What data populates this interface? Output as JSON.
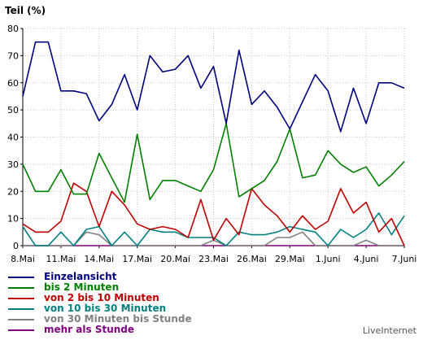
{
  "chart_data": {
    "type": "line",
    "ylabel": "Teil (%)",
    "ylim": [
      0,
      80
    ],
    "yticks": [
      "0",
      "10",
      "20",
      "30",
      "40",
      "50",
      "60",
      "70",
      "80"
    ],
    "grid": true,
    "x_tick_labels": [
      "8.Mai",
      "11.Mai",
      "14.Mai",
      "17.Mai",
      "20.Mai",
      "23.Mai",
      "26.Mai",
      "29.Mai",
      "1.Juni",
      "4.Juni",
      "7.Juni"
    ],
    "x_tick_positions": [
      0,
      3,
      6,
      9,
      12,
      15,
      18,
      21,
      24,
      27,
      30
    ],
    "x_count": 31,
    "series": [
      {
        "name": "Einzelansicht",
        "color": "#000080",
        "values": [
          55,
          75,
          75,
          57,
          57,
          56,
          46,
          52,
          63,
          50,
          70,
          64,
          65,
          70,
          58,
          66,
          45,
          72,
          52,
          57,
          51,
          43,
          53,
          63,
          57,
          42,
          58,
          45,
          60,
          60,
          58
        ]
      },
      {
        "name": "bis 2 Minuten",
        "color": "#008000",
        "values": [
          30,
          20,
          20,
          28,
          19,
          19,
          34,
          25,
          16,
          41,
          17,
          24,
          24,
          22,
          20,
          28,
          45,
          18,
          21,
          24,
          31,
          43,
          25,
          26,
          35,
          30,
          27,
          29,
          22,
          26,
          31
        ]
      },
      {
        "name": "von 2 bis 10 Minuten",
        "color": "#c00000",
        "values": [
          8,
          5,
          5,
          9,
          23,
          20,
          7,
          20,
          15,
          8,
          6,
          7,
          6,
          3,
          17,
          2,
          10,
          4,
          21,
          15,
          11,
          5,
          11,
          6,
          9,
          21,
          12,
          16,
          5,
          10,
          0
        ]
      },
      {
        "name": "von 10 bis 30 Minuten",
        "color": "#008080",
        "values": [
          7,
          0,
          0,
          5,
          0,
          6,
          7,
          0,
          5,
          0,
          6,
          5,
          5,
          3,
          3,
          3,
          0,
          5,
          4,
          4,
          5,
          7,
          6,
          5,
          0,
          6,
          3,
          6,
          12,
          4,
          11
        ]
      },
      {
        "name": "von 30 Minuten bis Stunde",
        "color": "#808080",
        "values": [
          0,
          0,
          0,
          0,
          0,
          5,
          4,
          0,
          0,
          0,
          0,
          0,
          0,
          0,
          0,
          2,
          0,
          0,
          0,
          0,
          3,
          3,
          5,
          0,
          0,
          0,
          0,
          2,
          0,
          0,
          0
        ]
      },
      {
        "name": "mehr als Stunde",
        "color": "#800080",
        "values": [
          0,
          0,
          0,
          0,
          0,
          0,
          0,
          0,
          0,
          0,
          0,
          0,
          0,
          0,
          0,
          0,
          0,
          0,
          0,
          0,
          0,
          0,
          0,
          0,
          0,
          0,
          0,
          0,
          0,
          0,
          0
        ]
      }
    ]
  },
  "branding": {
    "label": "LiveInternet"
  }
}
